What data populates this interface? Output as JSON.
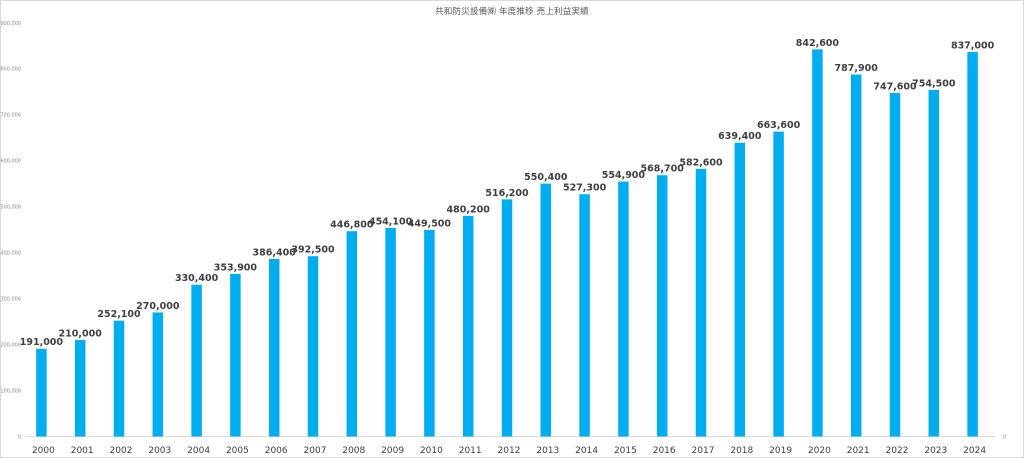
{
  "chart_data": {
    "type": "bar",
    "title": "共和防災設備㈱ 年度推移 売上利益実績",
    "xlabel": "",
    "ylabel": "",
    "ylim": [
      0,
      900000
    ],
    "yticks": [
      "0",
      "100,000",
      "200,000",
      "300,000",
      "400,000",
      "500,000",
      "600,000",
      "700,000",
      "800,000",
      "900,000"
    ],
    "ytick_values": [
      0,
      100000,
      200000,
      300000,
      400000,
      500000,
      600000,
      700000,
      800000,
      900000
    ],
    "categories": [
      "2000",
      "2001",
      "2002",
      "2003",
      "2004",
      "2005",
      "2006",
      "2007",
      "2008",
      "2009",
      "2010",
      "2011",
      "2012",
      "2013",
      "2014",
      "2015",
      "2016",
      "2017",
      "2018",
      "2019",
      "2020",
      "2021",
      "2022",
      "2023",
      "2024"
    ],
    "values": [
      191000,
      210000,
      252100,
      270000,
      330400,
      353900,
      386400,
      392500,
      446800,
      454100,
      449500,
      480200,
      516200,
      550400,
      527300,
      554900,
      568700,
      582600,
      639400,
      663600,
      842600,
      787900,
      747600,
      754500,
      837000
    ],
    "data_labels": [
      "191,000",
      "210,000",
      "252,100",
      "270,000",
      "330,400",
      "353,900",
      "386,400",
      "392,500",
      "446,800",
      "454,100",
      "449,500",
      "480,200",
      "516,200",
      "550,400",
      "527,300",
      "554,900",
      "568,700",
      "582,600",
      "639,400",
      "663,600",
      "842,600",
      "787,900",
      "747,600",
      "754,500",
      "837,000"
    ],
    "right_axis_label": "0",
    "bar_color": "#00aeef",
    "grid": false,
    "legend": "none"
  }
}
